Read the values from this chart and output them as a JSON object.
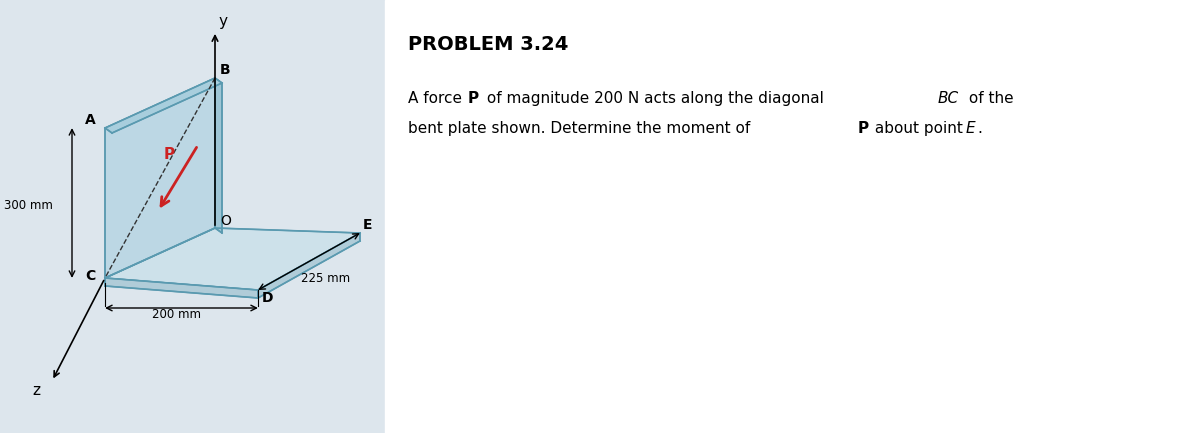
{
  "diagram_bg": "#dde6ed",
  "right_bg": "#ffffff",
  "plate_face_color": "#b8d5e3",
  "plate_edge_color": "#5a9ab0",
  "plate_side_color": "#9ec5d5",
  "plate_top_color": "#a8cedd",
  "horiz_top_color": "#cde1ea",
  "horiz_side_color": "#b0ccd8",
  "arrow_color": "#cc2222",
  "title": "PROBLEM 3.24",
  "line1_pre": "A force ",
  "line1_bold": "P",
  "line1_mid": " of magnitude 200 N acts along the diagonal ",
  "line1_italic": "BC",
  "line1_post": " of the",
  "line2_pre": "bent plate shown. Determine the moment of ",
  "line2_bold": "P",
  "line2_mid": " about point ",
  "line2_italic": "E",
  "line2_post": ".",
  "dim_300": "300 mm",
  "dim_200": "200 mm",
  "dim_225": "225 mm",
  "label_A": "A",
  "label_B": "B",
  "label_O": "O",
  "label_C": "C",
  "label_D": "D",
  "label_E": "E",
  "label_y": "y",
  "label_z": "z",
  "label_P": "P"
}
